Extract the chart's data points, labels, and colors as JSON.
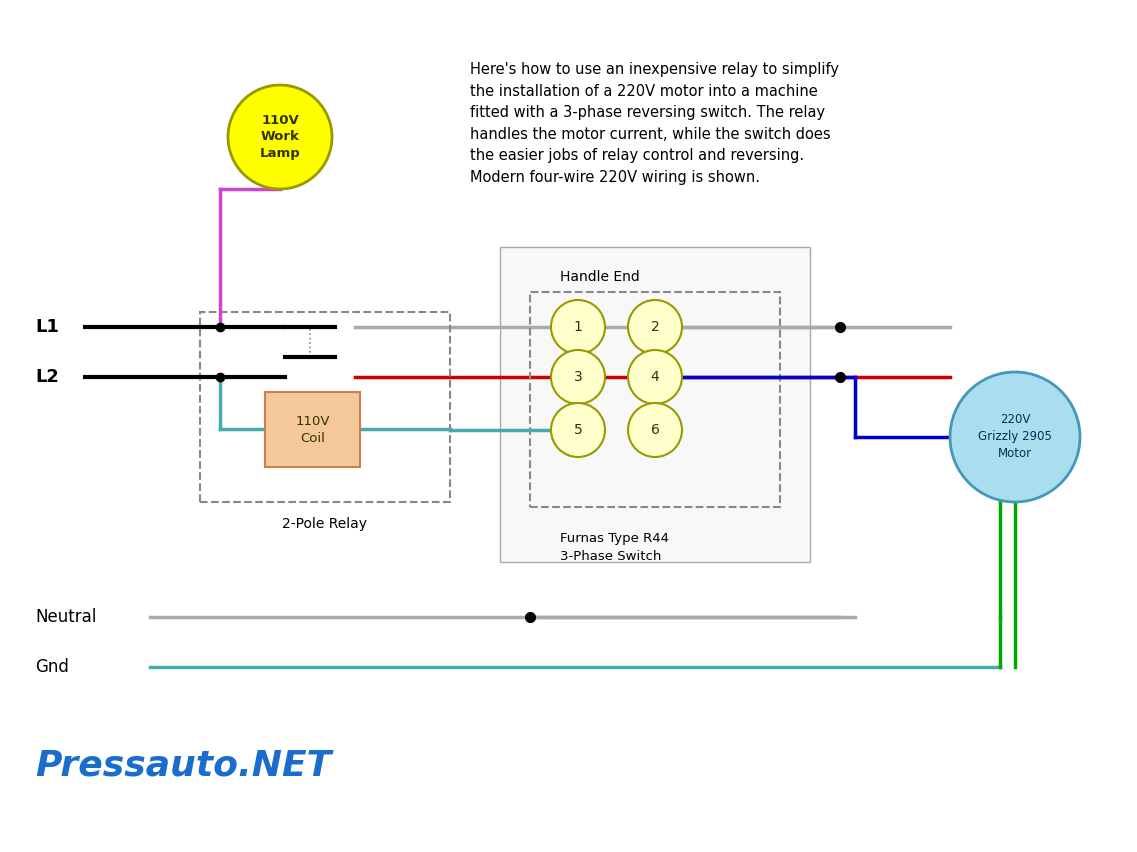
{
  "bg_color": "#ffffff",
  "text_color": "#000000",
  "description_text": "Here's how to use an inexpensive relay to simplify\nthe installation of a 220V motor into a machine\nfitted with a 3-phase reversing switch. The relay\nhandles the motor current, while the switch does\nthe easier jobs of relay control and reversing.\nModern four-wire 220V wiring is shown.",
  "watermark": "Pressauto.NET",
  "watermark_color": "#1a6dcc",
  "lamp_circle_color": "#ffff00",
  "lamp_circle_edge": "#999900",
  "lamp_text": "110V\nWork\nLamp",
  "motor_circle_color": "#aaddee",
  "motor_circle_edge": "#4499bb",
  "motor_text": "220V\nGrizzly 2905\nMotor",
  "coil_box_color": "#f5c89a",
  "coil_box_edge": "#c8824a",
  "coil_text": "110V\nCoil",
  "relay_label": "2-Pole Relay",
  "switch_label": "Furnas Type R44\n3-Phase Switch",
  "handle_label": "Handle End",
  "L1_label": "L1",
  "L2_label": "L2",
  "neutral_label": "Neutral",
  "gnd_label": "Gnd",
  "terminal_fill": "#ffffcc",
  "terminal_edge": "#999900",
  "line_color_black": "#000000",
  "line_color_gray": "#aaaaaa",
  "line_color_red": "#cc0000",
  "line_color_blue": "#0000cc",
  "line_color_green": "#00aa00",
  "line_color_teal": "#44aaaa",
  "line_color_magenta": "#cc44cc",
  "line_color_dashed": "#888888"
}
